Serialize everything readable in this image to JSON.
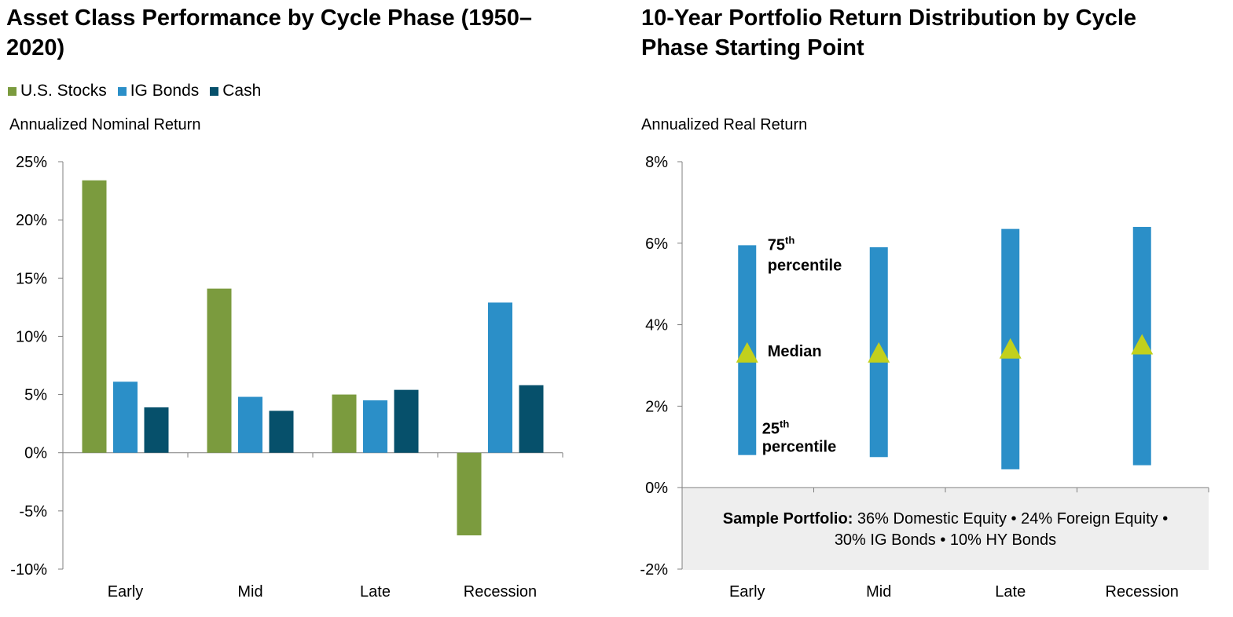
{
  "colors": {
    "stocks": "#7b9b3e",
    "bonds": "#2b8fc8",
    "cash": "#06506b",
    "range_bar": "#2b8fc8",
    "median_marker": "#c2d01c",
    "axis": "#7f7f7f"
  },
  "chart_data": [
    {
      "type": "bar",
      "title": "Asset Class Performance by Cycle Phase (1950–2020)",
      "ylabel": "Annualized Nominal Return",
      "xlabel": "",
      "categories": [
        "Early",
        "Mid",
        "Late",
        "Recession"
      ],
      "series": [
        {
          "name": "U.S. Stocks",
          "values": [
            23.4,
            14.1,
            5.0,
            -7.1
          ]
        },
        {
          "name": "IG Bonds",
          "values": [
            6.1,
            4.8,
            4.5,
            12.9
          ]
        },
        {
          "name": "Cash",
          "values": [
            3.9,
            3.6,
            5.4,
            5.8
          ]
        }
      ],
      "ylim": [
        -10,
        25
      ],
      "yticks": [
        25,
        20,
        15,
        10,
        5,
        0,
        -5,
        -10
      ],
      "ytick_labels": [
        "25%",
        "20%",
        "15%",
        "10%",
        "5%",
        "0%",
        "-5%",
        "-10%"
      ],
      "legend_position": "top-left"
    },
    {
      "type": "range",
      "title": "10-Year Portfolio Return Distribution by Cycle Phase Starting Point",
      "ylabel": "Annualized Real Return",
      "xlabel": "",
      "categories": [
        "Early",
        "Mid",
        "Late",
        "Recession"
      ],
      "p25": [
        0.8,
        0.75,
        0.45,
        0.55
      ],
      "p75": [
        5.95,
        5.9,
        6.35,
        6.4
      ],
      "median": [
        3.3,
        3.3,
        3.4,
        3.5
      ],
      "ylim": [
        -2,
        8
      ],
      "yticks": [
        8,
        6,
        4,
        2,
        0,
        -2
      ],
      "ytick_labels": [
        "8%",
        "6%",
        "4%",
        "2%",
        "0%",
        "-2%"
      ],
      "annotations": {
        "p75_ordinal": "75",
        "p75_suffix": "th",
        "p75_word": "percentile",
        "median_label": "Median",
        "p25_ordinal": "25",
        "p25_suffix": "th",
        "p25_word": "percentile"
      },
      "portfolio_note": {
        "label": "Sample Portfolio:",
        "text": " 36% Domestic Equity • 24% Foreign Equity • 30% IG Bonds • 10% HY Bonds"
      }
    }
  ],
  "left_panel": {
    "title": "Asset Class Performance by Cycle Phase (1950–2020)",
    "legend": [
      "U.S. Stocks",
      "IG Bonds",
      "Cash"
    ],
    "ylabel": "Annualized Nominal Return"
  },
  "right_panel": {
    "title": "10-Year Portfolio Return Distribution by Cycle Phase Starting Point",
    "ylabel": "Annualized Real Return"
  }
}
